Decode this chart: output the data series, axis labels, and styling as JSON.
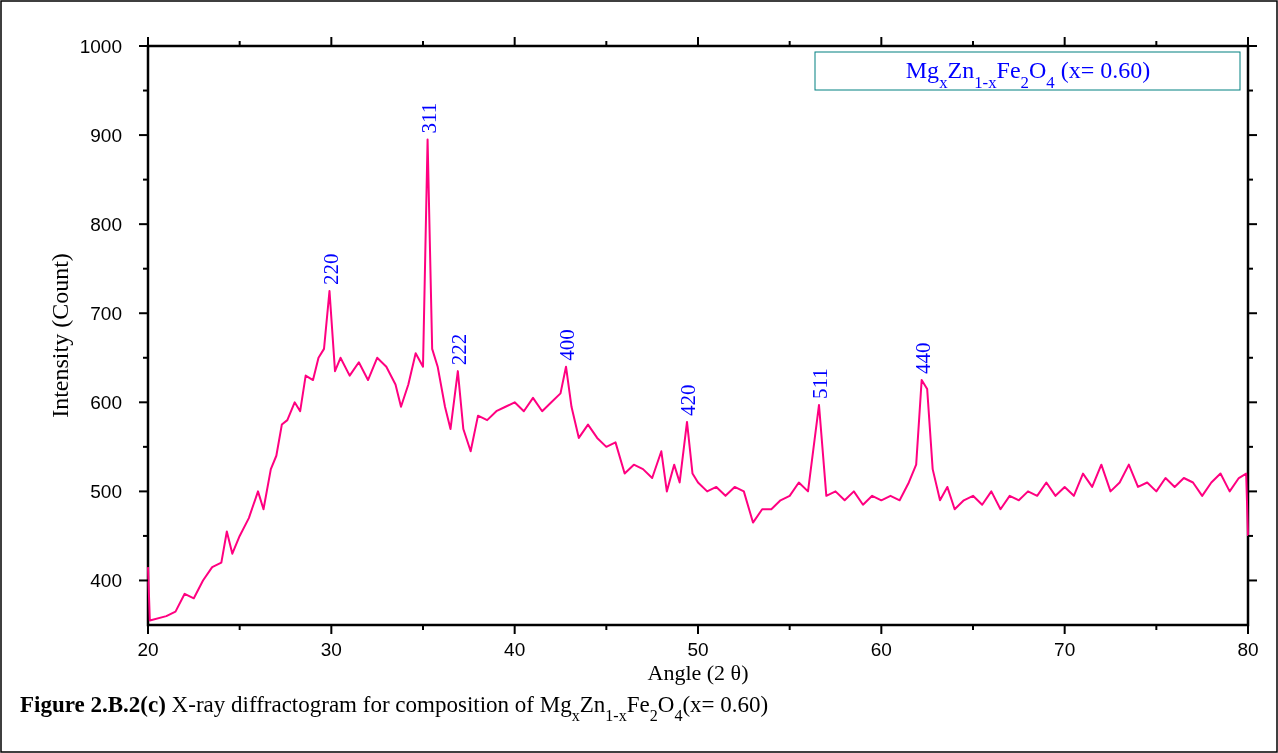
{
  "chart_data": {
    "type": "line",
    "title": "Figure 2.B.2(c) X-ray diffractogram for composition of Mg$_{x}$Zn$_{1-x}$Fe$_{2}$O$_{4}$(x= 0.60)",
    "xlabel": "Angle (2 θ)",
    "ylabel": "Intensity (Count)",
    "xlim": [
      20,
      80
    ],
    "ylim": [
      350,
      1000
    ],
    "xticks": [
      20,
      {
        "value": 25,
        "label": null
      },
      30,
      {
        "value": 35,
        "label": null
      },
      40,
      {
        "value": 45,
        "label": null
      },
      50,
      {
        "value": 55,
        "label": null
      },
      60,
      {
        "value": 65,
        "label": null
      },
      70,
      {
        "value": 75,
        "label": null
      },
      80
    ],
    "yticks": [
      400,
      {
        "value": 450,
        "label": null
      },
      500,
      {
        "value": 550,
        "label": null
      },
      600,
      {
        "value": 650,
        "label": null
      },
      700,
      {
        "value": 750,
        "label": null
      },
      800,
      {
        "value": 850,
        "label": null
      },
      900,
      {
        "value": 950,
        "label": null
      },
      1000
    ],
    "grid": false,
    "marker": "none",
    "line_style": "solid",
    "annotations": [
      "Mg$_{x}$Zn$_{1-x}$Fe$_{2}$O$_{4}$ (x= 0.60)",
      {
        "text": "220",
        "x": 29.9,
        "y": 725
      },
      {
        "text": "311",
        "x": 35.25,
        "y": 895
      },
      {
        "text": "222",
        "x": 36.9,
        "y": 635
      },
      {
        "text": "400",
        "x": 42.8,
        "y": 640
      },
      {
        "text": "420",
        "x": 49.4,
        "y": 578
      },
      {
        "text": "511",
        "x": 56.6,
        "y": 597
      },
      {
        "text": "440",
        "x": 62.2,
        "y": 625
      }
    ],
    "series": [
      {
        "color": "#ff0080",
        "x": [
          20,
          20.1,
          21,
          21.5,
          22,
          22.5,
          23,
          23.5,
          24,
          24.3,
          24.6,
          25,
          25.5,
          26,
          26.3,
          26.7,
          27,
          27.3,
          27.6,
          28,
          28.3,
          28.6,
          29,
          29.3,
          29.6,
          29.9,
          30.2,
          30.5,
          31,
          31.5,
          32,
          32.5,
          33,
          33.5,
          33.8,
          34.2,
          34.6,
          35,
          35.25,
          35.5,
          35.8,
          36.2,
          36.5,
          36.9,
          37.2,
          37.6,
          38,
          38.5,
          39,
          39.5,
          40,
          40.5,
          41,
          41.5,
          42,
          42.5,
          42.8,
          43.1,
          43.5,
          44,
          44.5,
          45,
          45.5,
          46,
          46.5,
          47,
          47.5,
          48,
          48.3,
          48.7,
          49,
          49.4,
          49.7,
          50,
          50.5,
          51,
          51.5,
          52,
          52.5,
          53,
          53.5,
          54,
          54.5,
          55,
          55.5,
          56,
          56.6,
          57,
          57.5,
          58,
          58.5,
          59,
          59.5,
          60,
          60.5,
          61,
          61.5,
          61.9,
          62.2,
          62.5,
          62.8,
          63.2,
          63.6,
          64,
          64.5,
          65,
          65.5,
          66,
          66.5,
          67,
          67.5,
          68,
          68.5,
          69,
          69.5,
          70,
          70.5,
          71,
          71.5,
          72,
          72.5,
          73,
          73.5,
          74,
          74.5,
          75,
          75.5,
          76,
          76.5,
          77,
          77.5,
          78,
          78.5,
          79,
          79.5,
          79.9,
          80
        ],
        "values": [
          415,
          355,
          360,
          365,
          385,
          380,
          400,
          415,
          420,
          455,
          430,
          450,
          470,
          500,
          480,
          525,
          540,
          575,
          580,
          600,
          590,
          630,
          625,
          650,
          660,
          725,
          635,
          650,
          630,
          645,
          625,
          650,
          640,
          620,
          595,
          620,
          655,
          640,
          895,
          660,
          640,
          595,
          570,
          635,
          570,
          545,
          585,
          580,
          590,
          595,
          600,
          590,
          605,
          590,
          600,
          610,
          640,
          595,
          560,
          575,
          560,
          550,
          555,
          520,
          530,
          525,
          515,
          545,
          500,
          530,
          510,
          578,
          520,
          510,
          500,
          505,
          495,
          505,
          500,
          465,
          480,
          480,
          490,
          495,
          510,
          500,
          597,
          495,
          500,
          490,
          500,
          485,
          495,
          490,
          495,
          490,
          510,
          530,
          625,
          615,
          525,
          490,
          505,
          480,
          490,
          495,
          485,
          500,
          480,
          495,
          490,
          500,
          495,
          510,
          495,
          505,
          495,
          520,
          505,
          530,
          500,
          510,
          530,
          505,
          510,
          500,
          515,
          505,
          515,
          510,
          495,
          510,
          520,
          500,
          515,
          520,
          450
        ]
      }
    ]
  }
}
